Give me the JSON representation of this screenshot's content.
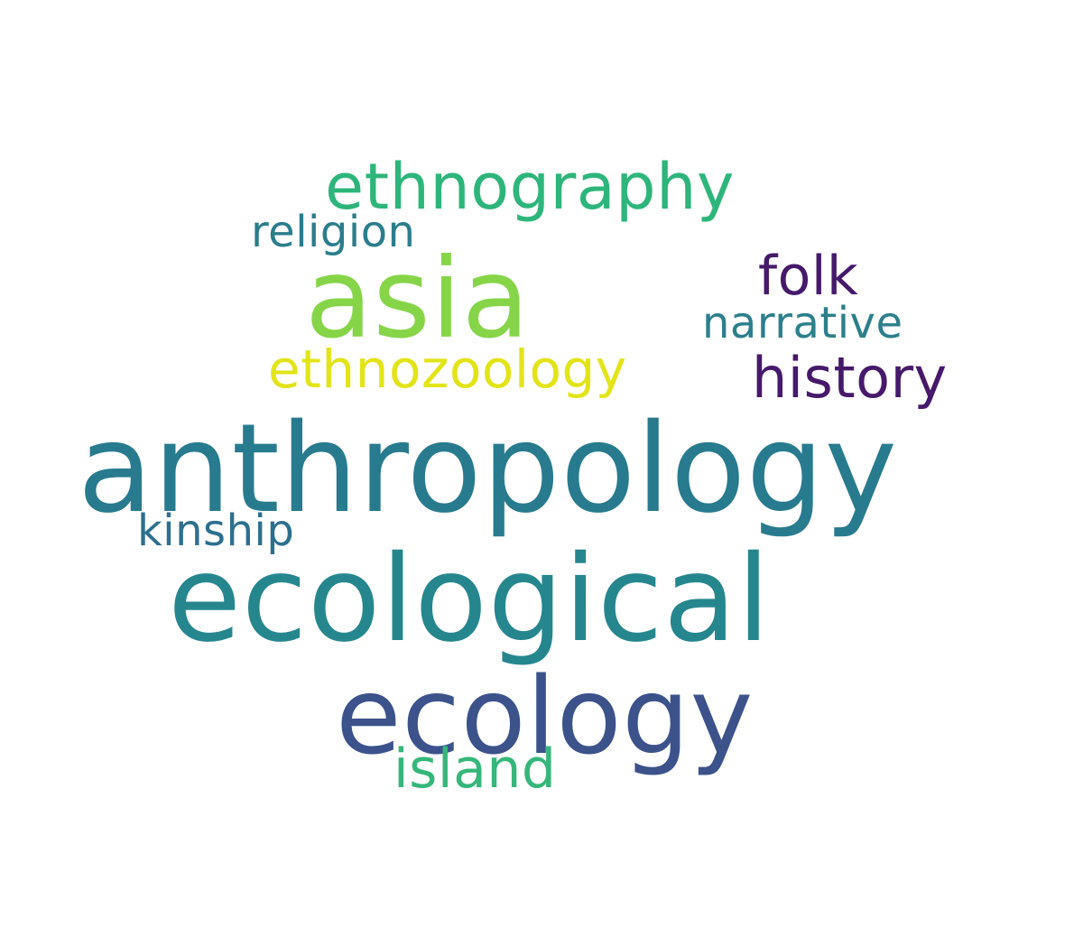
{
  "word_cloud": {
    "background": "#ffffff",
    "words": [
      {
        "id": "ethnography",
        "text": "ethnography",
        "color": "#2db57a"
      },
      {
        "id": "religion",
        "text": "religion",
        "color": "#2a7d8c"
      },
      {
        "id": "asia",
        "text": "asia",
        "color": "#86d549"
      },
      {
        "id": "folk",
        "text": "folk",
        "color": "#46196b"
      },
      {
        "id": "narrative",
        "text": "narrative",
        "color": "#2c7f8c"
      },
      {
        "id": "ethnozoology",
        "text": "ethnozoology",
        "color": "#e2e418"
      },
      {
        "id": "history",
        "text": "history",
        "color": "#46196b"
      },
      {
        "id": "anthropology",
        "text": "anthropology",
        "color": "#287b8e"
      },
      {
        "id": "kinship",
        "text": "kinship",
        "color": "#2d6f8e"
      },
      {
        "id": "ecological",
        "text": "ecological",
        "color": "#26868e"
      },
      {
        "id": "ecology",
        "text": "ecology",
        "color": "#3b528b"
      },
      {
        "id": "island",
        "text": "island",
        "color": "#35b779"
      }
    ]
  }
}
